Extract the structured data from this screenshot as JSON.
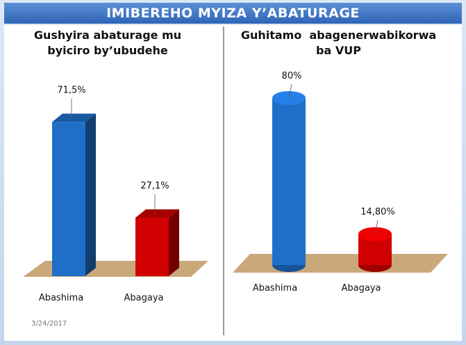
{
  "slide_title": "IMIBEREHO MYIZA Y’ABATURAGE",
  "date": "3/24/2017",
  "chart_data": [
    {
      "type": "bar",
      "title": "Gushyira abaturage mu byiciro by’ubudehe",
      "categories": [
        "Abashima",
        "Abagaya"
      ],
      "values": [
        71.5,
        27.1
      ],
      "value_labels": [
        "71,5%",
        "27,1%"
      ],
      "colors": [
        "#1f6fc9",
        "#d10000"
      ]
    },
    {
      "type": "cylinder",
      "title": "Guhitamo  abagenerwabikorwa ba VUP",
      "categories": [
        "Abashima",
        "Abagaya"
      ],
      "values": [
        80,
        14.8
      ],
      "value_labels": [
        "80%",
        "14,80%"
      ],
      "colors": [
        "#1f6fc9",
        "#d10000"
      ]
    }
  ]
}
